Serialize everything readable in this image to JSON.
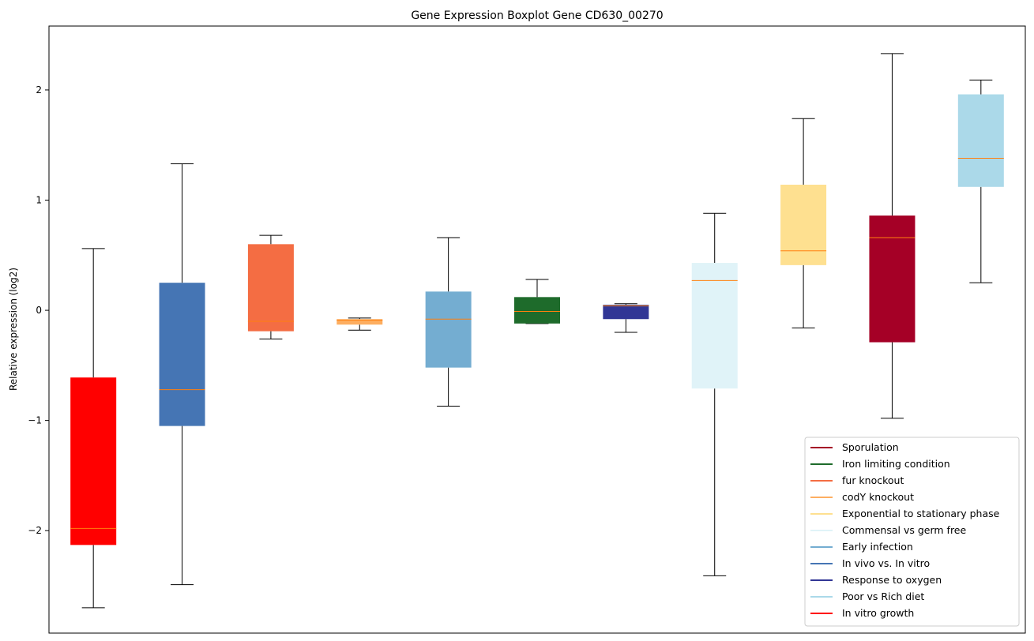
{
  "chart_data": {
    "type": "boxplot",
    "title": "Gene Expression Boxplot Gene CD630_00270",
    "xlabel": "",
    "ylabel": "Relative expression (log2)",
    "ylim": [
      -2.93,
      2.58
    ],
    "yticks": [
      -2,
      -1,
      0,
      1,
      2
    ],
    "ytick_labels": [
      "−2",
      "−1",
      "0",
      "1",
      "2"
    ],
    "grid": false,
    "legend_position": "lower-right",
    "median_color": "#ff7f0e",
    "boxes": [
      {
        "series": "In vitro growth",
        "color": "#ff0000",
        "whisker_low": -2.7,
        "q1": -2.13,
        "median": -1.98,
        "q3": -0.61,
        "whisker_high": 0.56
      },
      {
        "series": "In vivo vs. In vitro",
        "color": "#4575b4",
        "whisker_low": -2.49,
        "q1": -1.05,
        "median": -0.72,
        "q3": 0.25,
        "whisker_high": 1.33
      },
      {
        "series": "fur knockout",
        "color": "#f46d43",
        "whisker_low": -0.26,
        "q1": -0.19,
        "median": -0.1,
        "q3": 0.6,
        "whisker_high": 0.68
      },
      {
        "series": "codY knockout",
        "color": "#fdae61",
        "whisker_low": -0.18,
        "q1": -0.13,
        "median": -0.09,
        "q3": -0.08,
        "whisker_high": -0.07
      },
      {
        "series": "Early infection",
        "color": "#74add1",
        "whisker_low": -0.87,
        "q1": -0.52,
        "median": -0.08,
        "q3": 0.17,
        "whisker_high": 0.66
      },
      {
        "series": "Iron limiting condition",
        "color": "#1e6b2b",
        "whisker_low": -0.12,
        "q1": -0.12,
        "median": -0.01,
        "q3": 0.12,
        "whisker_high": 0.28
      },
      {
        "series": "Response to oxygen",
        "color": "#313695",
        "whisker_low": -0.2,
        "q1": -0.08,
        "median": 0.04,
        "q3": 0.05,
        "whisker_high": 0.06
      },
      {
        "series": "Commensal vs germ free",
        "color": "#e0f3f8",
        "whisker_low": -2.41,
        "q1": -0.71,
        "median": 0.27,
        "q3": 0.43,
        "whisker_high": 0.88
      },
      {
        "series": "Exponential to stationary phase",
        "color": "#fee090",
        "whisker_low": -0.16,
        "q1": 0.41,
        "median": 0.54,
        "q3": 1.14,
        "whisker_high": 1.74
      },
      {
        "series": "Sporulation",
        "color": "#a50026",
        "whisker_low": -0.98,
        "q1": -0.29,
        "median": 0.66,
        "q3": 0.86,
        "whisker_high": 2.33
      },
      {
        "series": "Poor vs Rich diet",
        "color": "#abd9e9",
        "whisker_low": 0.25,
        "q1": 1.12,
        "median": 1.38,
        "q3": 1.96,
        "whisker_high": 2.09
      }
    ],
    "legend": [
      {
        "label": "Sporulation",
        "color": "#a50026"
      },
      {
        "label": "Iron limiting condition",
        "color": "#1e6b2b"
      },
      {
        "label": "fur knockout",
        "color": "#f46d43"
      },
      {
        "label": "codY knockout",
        "color": "#fdae61"
      },
      {
        "label": "Exponential to stationary phase",
        "color": "#fee090"
      },
      {
        "label": "Commensal vs germ free",
        "color": "#e0f3f8"
      },
      {
        "label": "Early infection",
        "color": "#74add1"
      },
      {
        "label": "In vivo vs. In vitro",
        "color": "#4575b4"
      },
      {
        "label": "Response to oxygen",
        "color": "#313695"
      },
      {
        "label": "Poor vs Rich diet",
        "color": "#abd9e9"
      },
      {
        "label": "In vitro growth",
        "color": "#ff0000"
      }
    ]
  }
}
